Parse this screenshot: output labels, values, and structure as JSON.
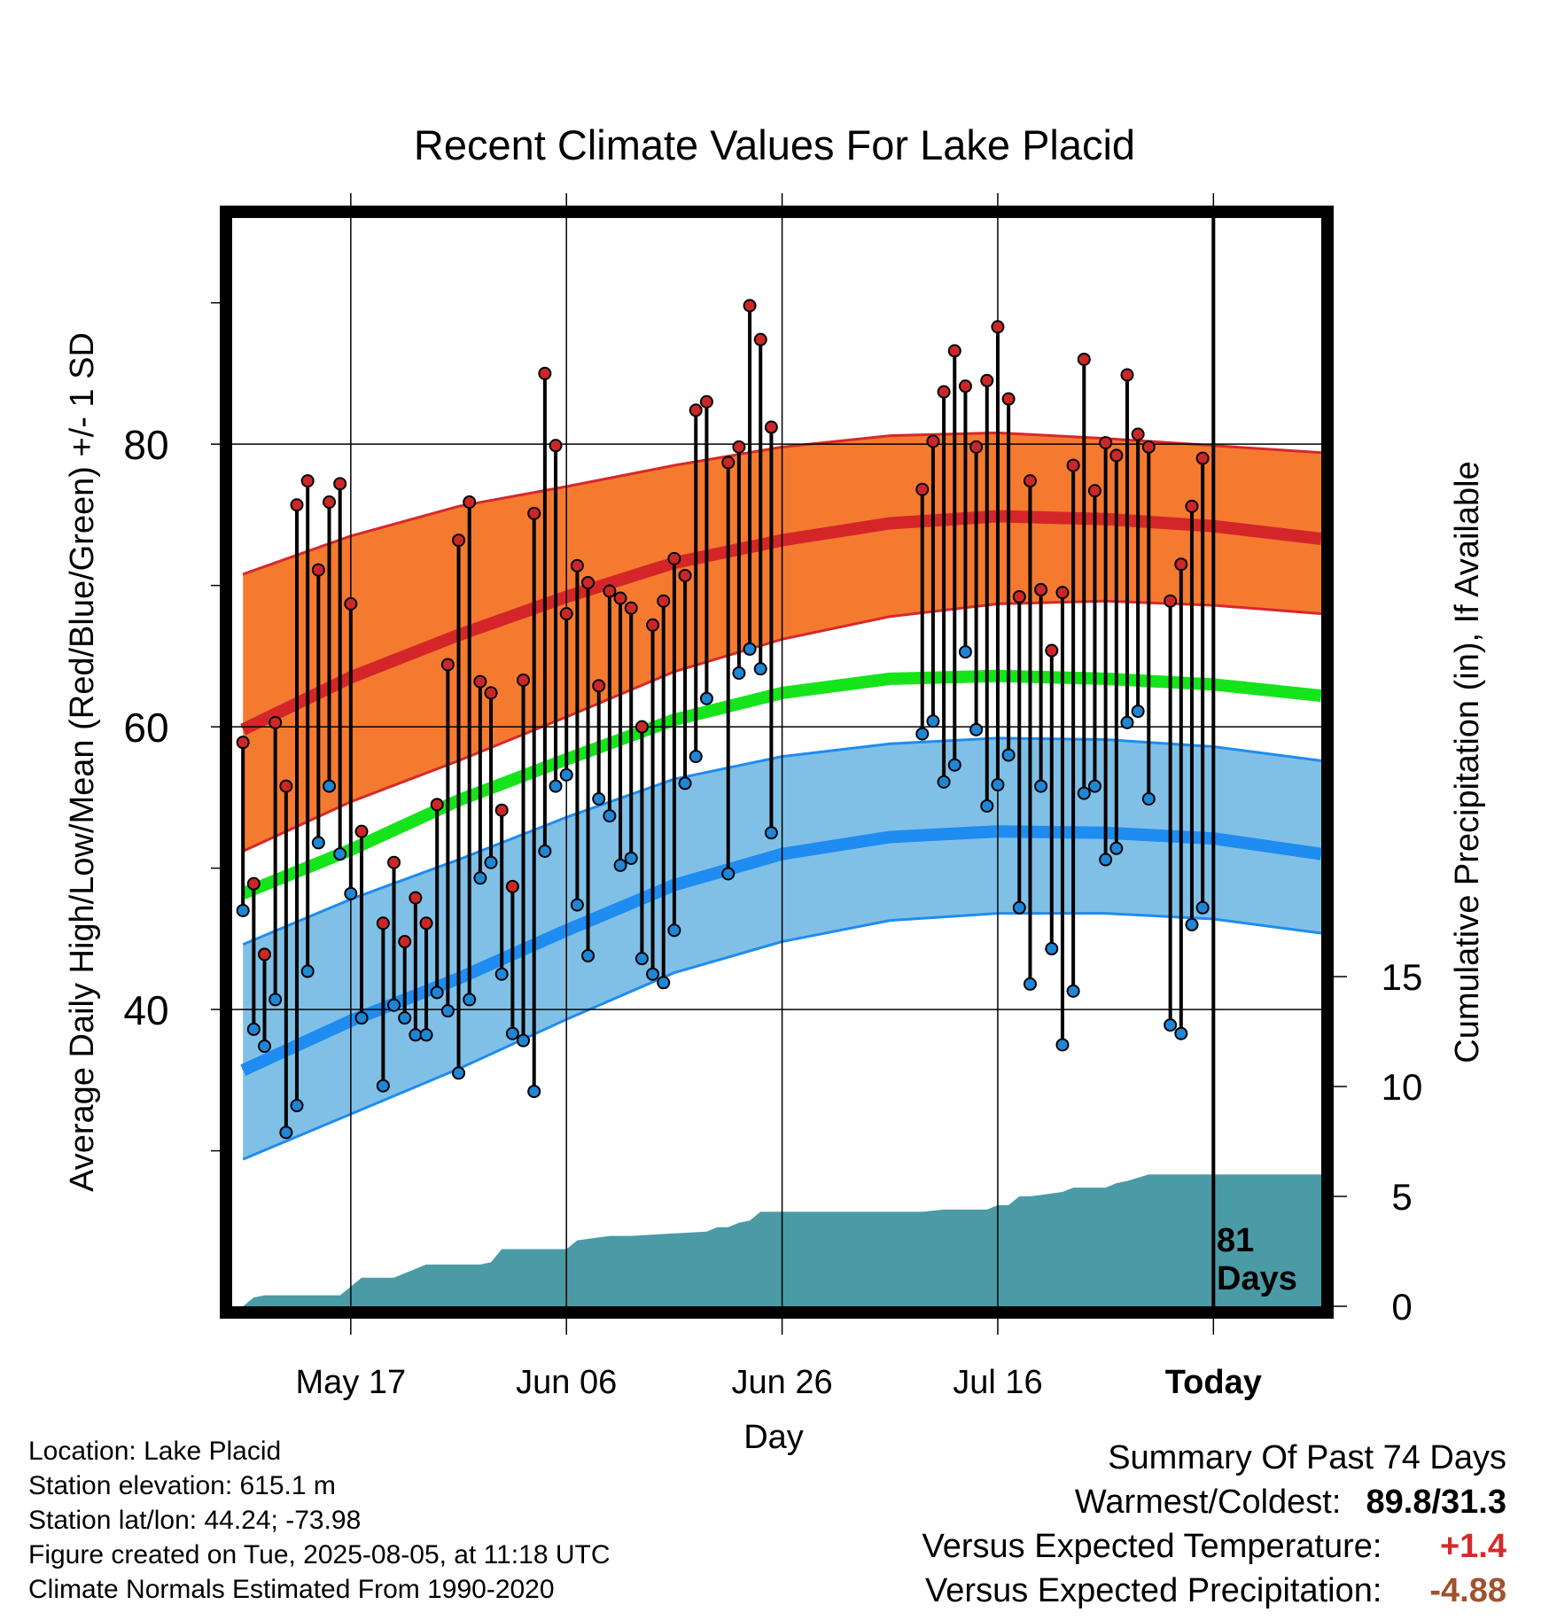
{
  "chart_data": {
    "type": "line",
    "title": "Recent Climate Values For Lake Placid",
    "xlabel": "Day",
    "ylabel_left": "Average Daily High/Low/Mean (Red/Blue/Green) +/- 1 SD",
    "ylabel_right": "Cumulative Precipitation (in), If Available",
    "x_ticks": [
      {
        "day": 10,
        "label": "May 17"
      },
      {
        "day": 30,
        "label": "Jun 06"
      },
      {
        "day": 50,
        "label": "Jun 26"
      },
      {
        "day": 70,
        "label": "Jul 16"
      },
      {
        "day": 90,
        "label": "Today"
      }
    ],
    "xlim": [
      -1,
      100
    ],
    "ylim_left": [
      19,
      96
    ],
    "yticks_left": [
      "40",
      "60",
      "80"
    ],
    "ylim_right": [
      0,
      15
    ],
    "yticks_right": [
      "0",
      "5",
      "10",
      "15"
    ],
    "today_day": 90,
    "today_note": [
      "81",
      "Days"
    ],
    "normals": {
      "day": [
        0,
        10,
        20,
        30,
        40,
        50,
        60,
        70,
        80,
        90,
        100
      ],
      "high_mean": [
        59.8,
        63.5,
        66.5,
        69.2,
        71.6,
        73.2,
        74.4,
        74.9,
        74.7,
        74.2,
        73.3
      ],
      "high_upper": [
        70.8,
        73.5,
        75.6,
        77.0,
        78.5,
        79.8,
        80.6,
        80.8,
        80.4,
        79.9,
        79.4
      ],
      "high_lower": [
        51.2,
        54.7,
        57.6,
        60.7,
        63.9,
        66.2,
        67.8,
        68.7,
        68.9,
        68.6,
        68.0
      ],
      "mean": [
        48.2,
        51.3,
        54.8,
        57.7,
        60.5,
        62.4,
        63.4,
        63.6,
        63.4,
        63.0,
        62.2
      ],
      "low_mean": [
        35.7,
        39.2,
        42.2,
        45.6,
        48.8,
        51.0,
        52.2,
        52.6,
        52.5,
        52.1,
        51.0
      ],
      "low_upper": [
        44.6,
        47.8,
        50.6,
        53.6,
        56.3,
        57.9,
        58.8,
        59.2,
        59.1,
        58.6,
        57.6
      ],
      "low_lower": [
        29.4,
        32.6,
        35.8,
        39.3,
        42.6,
        44.8,
        46.3,
        46.8,
        46.8,
        46.4,
        45.4
      ]
    },
    "observed": [
      {
        "day": 0,
        "high": 58.9,
        "low": 47.0
      },
      {
        "day": 1,
        "high": 48.9,
        "low": 38.6
      },
      {
        "day": 2,
        "high": 43.9,
        "low": 37.4
      },
      {
        "day": 3,
        "high": 60.3,
        "low": 40.7
      },
      {
        "day": 4,
        "high": 55.8,
        "low": 31.3
      },
      {
        "day": 5,
        "high": 75.7,
        "low": 33.2
      },
      {
        "day": 6,
        "high": 77.4,
        "low": 42.7
      },
      {
        "day": 7,
        "high": 71.1,
        "low": 51.8
      },
      {
        "day": 8,
        "high": 75.9,
        "low": 55.8
      },
      {
        "day": 9,
        "high": 77.2,
        "low": 51.0
      },
      {
        "day": 10,
        "high": 68.7,
        "low": 48.2
      },
      {
        "day": 11,
        "high": 52.6,
        "low": 39.4
      },
      {
        "day": 13,
        "high": 46.1,
        "low": 34.6
      },
      {
        "day": 14,
        "high": 50.4,
        "low": 40.3
      },
      {
        "day": 15,
        "high": 44.8,
        "low": 39.4
      },
      {
        "day": 16,
        "high": 47.9,
        "low": 38.2
      },
      {
        "day": 17,
        "high": 46.1,
        "low": 38.2
      },
      {
        "day": 18,
        "high": 54.5,
        "low": 41.2
      },
      {
        "day": 19,
        "high": 64.4,
        "low": 39.9
      },
      {
        "day": 20,
        "high": 73.2,
        "low": 35.5
      },
      {
        "day": 21,
        "high": 75.9,
        "low": 40.7
      },
      {
        "day": 22,
        "high": 63.2,
        "low": 49.3
      },
      {
        "day": 23,
        "high": 62.4,
        "low": 50.4
      },
      {
        "day": 24,
        "high": 54.1,
        "low": 42.5
      },
      {
        "day": 25,
        "high": 48.7,
        "low": 38.3
      },
      {
        "day": 26,
        "high": 63.3,
        "low": 37.8
      },
      {
        "day": 27,
        "high": 75.1,
        "low": 34.2
      },
      {
        "day": 28,
        "high": 85.0,
        "low": 51.2
      },
      {
        "day": 29,
        "high": 79.9,
        "low": 55.8
      },
      {
        "day": 30,
        "high": 68.0,
        "low": 56.6
      },
      {
        "day": 31,
        "high": 71.4,
        "low": 47.4
      },
      {
        "day": 32,
        "high": 70.2,
        "low": 43.8
      },
      {
        "day": 33,
        "high": 62.9,
        "low": 54.9
      },
      {
        "day": 34,
        "high": 69.6,
        "low": 53.7
      },
      {
        "day": 35,
        "high": 69.1,
        "low": 50.2
      },
      {
        "day": 36,
        "high": 68.4,
        "low": 50.7
      },
      {
        "day": 37,
        "high": 60.0,
        "low": 43.6
      },
      {
        "day": 38,
        "high": 67.2,
        "low": 42.5
      },
      {
        "day": 39,
        "high": 68.9,
        "low": 41.9
      },
      {
        "day": 40,
        "high": 71.9,
        "low": 45.6
      },
      {
        "day": 41,
        "high": 70.7,
        "low": 56.0
      },
      {
        "day": 42,
        "high": 82.4,
        "low": 57.9
      },
      {
        "day": 43,
        "high": 83.0,
        "low": 62.0
      },
      {
        "day": 45,
        "high": 78.7,
        "low": 49.6
      },
      {
        "day": 46,
        "high": 79.8,
        "low": 63.8
      },
      {
        "day": 47,
        "high": 89.8,
        "low": 65.5
      },
      {
        "day": 48,
        "high": 87.4,
        "low": 64.1
      },
      {
        "day": 49,
        "high": 81.2,
        "low": 52.5
      },
      {
        "day": 63,
        "high": 76.8,
        "low": 59.5
      },
      {
        "day": 64,
        "high": 80.2,
        "low": 60.4
      },
      {
        "day": 65,
        "high": 83.7,
        "low": 56.1
      },
      {
        "day": 66,
        "high": 86.6,
        "low": 57.3
      },
      {
        "day": 67,
        "high": 84.1,
        "low": 65.3
      },
      {
        "day": 68,
        "high": 79.8,
        "low": 59.8
      },
      {
        "day": 69,
        "high": 84.5,
        "low": 54.4
      },
      {
        "day": 70,
        "high": 88.3,
        "low": 55.9
      },
      {
        "day": 71,
        "high": 83.2,
        "low": 58.0
      },
      {
        "day": 72,
        "high": 69.2,
        "low": 47.2
      },
      {
        "day": 73,
        "high": 77.4,
        "low": 41.8
      },
      {
        "day": 74,
        "high": 69.7,
        "low": 55.8
      },
      {
        "day": 75,
        "high": 65.4,
        "low": 44.3
      },
      {
        "day": 76,
        "high": 69.5,
        "low": 37.5
      },
      {
        "day": 77,
        "high": 78.5,
        "low": 41.3
      },
      {
        "day": 78,
        "high": 86.0,
        "low": 55.3
      },
      {
        "day": 79,
        "high": 76.7,
        "low": 55.8
      },
      {
        "day": 80,
        "high": 80.1,
        "low": 50.6
      },
      {
        "day": 81,
        "high": 79.2,
        "low": 51.4
      },
      {
        "day": 82,
        "high": 84.9,
        "low": 60.3
      },
      {
        "day": 83,
        "high": 80.7,
        "low": 61.1
      },
      {
        "day": 84,
        "high": 79.8,
        "low": 54.9
      },
      {
        "day": 86,
        "high": 68.9,
        "low": 38.9
      },
      {
        "day": 87,
        "high": 71.5,
        "low": 38.3
      },
      {
        "day": 88,
        "high": 75.6,
        "low": 46.0
      },
      {
        "day": 89,
        "high": 79.0,
        "low": 47.2
      }
    ],
    "precip_cumulative": {
      "day": [
        0,
        1,
        2,
        9,
        10,
        11,
        14,
        15,
        17,
        22,
        23,
        24,
        30,
        31,
        34,
        36,
        43,
        44,
        45,
        46,
        47,
        48,
        63,
        65,
        69,
        70,
        71,
        72,
        73,
        76,
        77,
        79,
        80,
        81,
        82,
        84,
        90,
        100
      ],
      "inches": [
        0.0,
        0.4,
        0.5,
        0.5,
        0.9,
        1.3,
        1.3,
        1.5,
        1.9,
        1.9,
        2.0,
        2.6,
        2.6,
        3.0,
        3.2,
        3.2,
        3.4,
        3.6,
        3.6,
        3.8,
        3.9,
        4.3,
        4.3,
        4.4,
        4.4,
        4.6,
        4.6,
        5.0,
        5.0,
        5.2,
        5.4,
        5.4,
        5.4,
        5.6,
        5.7,
        6.0,
        6.0,
        6.0
      ]
    },
    "colors": {
      "high_band": "#f47a30",
      "high_band_edge": "#d8282a",
      "high_mean": "#d42629",
      "mean_line": "#16e41b",
      "low_band": "#81c0e6",
      "low_band_edge": "#1e8cf0",
      "low_mean": "#1e8cf0",
      "precip": "#4a9ba5",
      "high_dot": "#cc2727",
      "low_dot": "#1f86d6"
    }
  },
  "info": {
    "location": "Location: Lake Placid",
    "elevation": "Station elevation: 615.1 m",
    "latlon": "Station lat/lon: 44.24; -73.98",
    "created": "Figure created on Tue, 2025-08-05, at 11:18 UTC",
    "normals": "Climate Normals Estimated From 1990-2020"
  },
  "summary": {
    "title": "Summary Of Past 74 Days",
    "warmest_label": "Warmest/Coldest:",
    "warmest_value": "89.8/31.3",
    "temp_label": "Versus Expected Temperature:",
    "temp_value": "+1.4",
    "temp_color": "#d42a2a",
    "precip_label": "Versus Expected Precipitation:",
    "precip_value": "-4.88",
    "precip_color": "#a0522d"
  }
}
